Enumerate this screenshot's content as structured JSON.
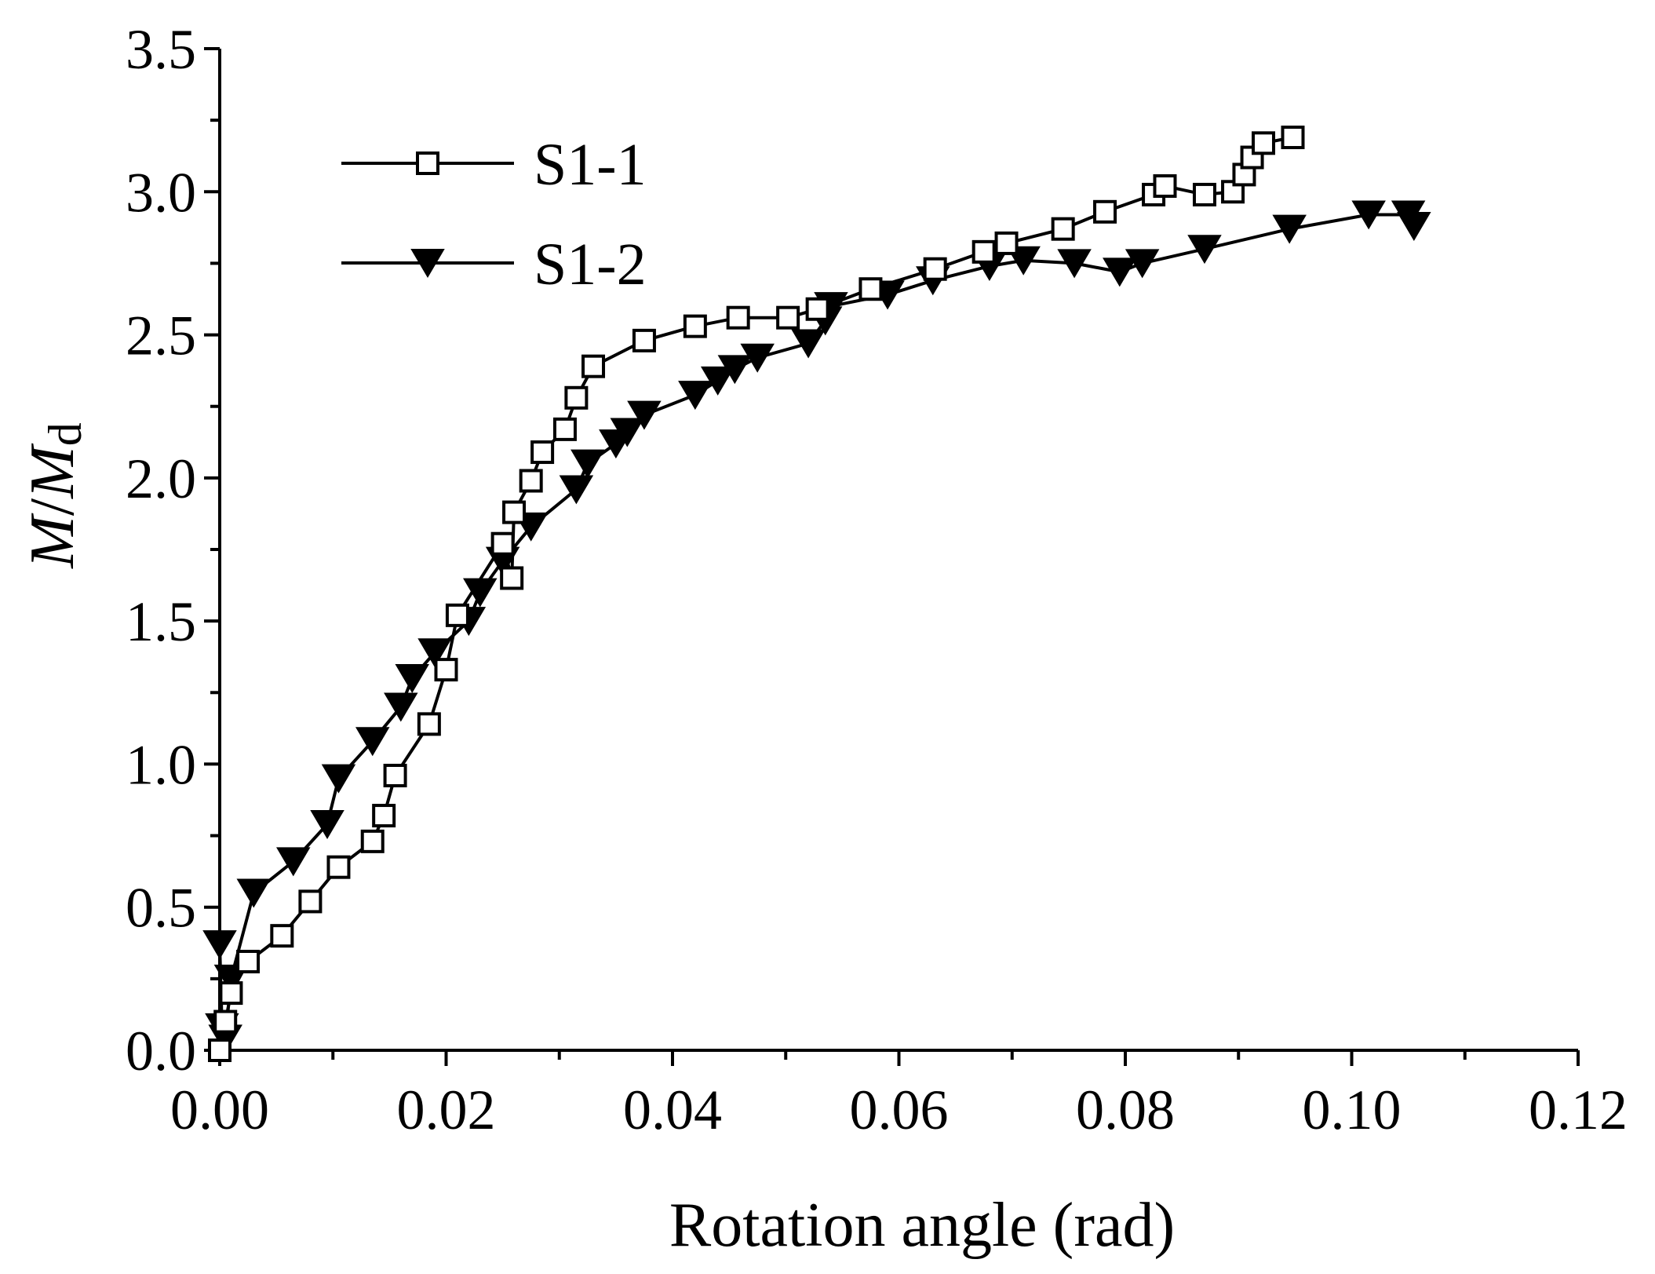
{
  "chart_data": {
    "type": "line",
    "title": "",
    "xlabel": "Rotation angle (rad)",
    "ylabel": {
      "part1": "M",
      "sep": "/",
      "part2": "M",
      "sub": "d"
    },
    "xlim": [
      0.0,
      0.12
    ],
    "ylim": [
      0.0,
      3.5
    ],
    "xticks": [
      0.0,
      0.02,
      0.04,
      0.06,
      0.08,
      0.1,
      0.12
    ],
    "xtick_labels": [
      "0.00",
      "0.02",
      "0.04",
      "0.06",
      "0.08",
      "0.10",
      "0.12"
    ],
    "yticks": [
      0.0,
      0.5,
      1.0,
      1.5,
      2.0,
      2.5,
      3.0,
      3.5
    ],
    "ytick_labels": [
      "0.0",
      "0.5",
      "1.0",
      "1.5",
      "2.0",
      "2.5",
      "3.0",
      "3.5"
    ],
    "grid": false,
    "legend_position": "top-left",
    "series": [
      {
        "name": "S1-1",
        "marker": "open-square",
        "x": [
          0.0,
          0.0005,
          0.001,
          0.0025,
          0.0055,
          0.008,
          0.0105,
          0.0135,
          0.0145,
          0.0155,
          0.0185,
          0.02,
          0.021,
          0.025,
          0.0258,
          0.026,
          0.0275,
          0.0285,
          0.0305,
          0.0315,
          0.033,
          0.0375,
          0.042,
          0.0458,
          0.0502,
          0.0528,
          0.0575,
          0.0632,
          0.0675,
          0.0695,
          0.0745,
          0.0782,
          0.0825,
          0.0835,
          0.087,
          0.0895,
          0.0905,
          0.0912,
          0.0922,
          0.0948
        ],
        "y": [
          0.0,
          0.1,
          0.2,
          0.31,
          0.4,
          0.52,
          0.64,
          0.73,
          0.82,
          0.96,
          1.14,
          1.33,
          1.52,
          1.77,
          1.65,
          1.88,
          1.99,
          2.09,
          2.17,
          2.28,
          2.39,
          2.48,
          2.53,
          2.56,
          2.56,
          2.59,
          2.66,
          2.73,
          2.79,
          2.82,
          2.87,
          2.93,
          2.99,
          3.02,
          2.99,
          3.0,
          3.06,
          3.12,
          3.17,
          3.19
        ]
      },
      {
        "name": "S1-2",
        "marker": "filled-down-triangle",
        "x": [
          0.0,
          0.0002,
          0.0005,
          0.001,
          0.003,
          0.0065,
          0.0095,
          0.0105,
          0.0135,
          0.016,
          0.017,
          0.019,
          0.022,
          0.023,
          0.025,
          0.0275,
          0.0315,
          0.0325,
          0.035,
          0.036,
          0.0375,
          0.042,
          0.044,
          0.0455,
          0.0475,
          0.052,
          0.0535,
          0.054,
          0.059,
          0.063,
          0.068,
          0.071,
          0.0755,
          0.0795,
          0.0815,
          0.087,
          0.0945,
          0.1015,
          0.105,
          0.1055
        ],
        "y": [
          0.37,
          0.08,
          0.04,
          0.25,
          0.55,
          0.66,
          0.79,
          0.95,
          1.08,
          1.2,
          1.3,
          1.39,
          1.5,
          1.6,
          1.71,
          1.83,
          1.96,
          2.05,
          2.12,
          2.16,
          2.22,
          2.29,
          2.34,
          2.38,
          2.42,
          2.47,
          2.55,
          2.6,
          2.64,
          2.69,
          2.74,
          2.76,
          2.75,
          2.72,
          2.75,
          2.8,
          2.87,
          2.92,
          2.92,
          2.88
        ]
      }
    ]
  }
}
